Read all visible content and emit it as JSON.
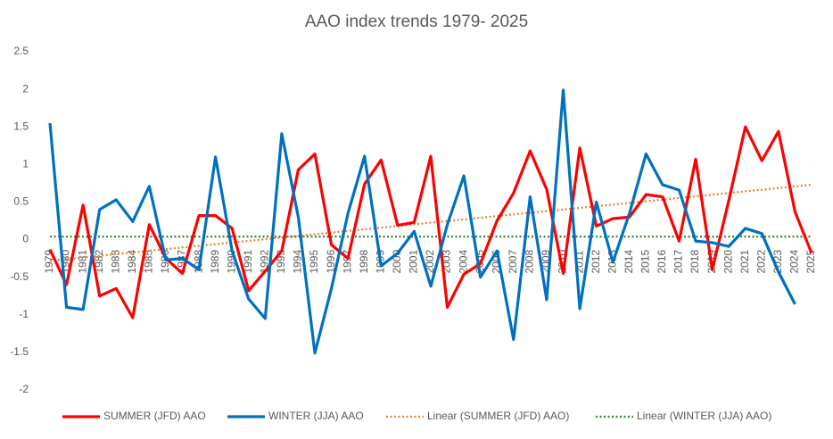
{
  "chart_data": {
    "type": "line",
    "title": "AAO index trends 1979- 2025",
    "categories": [
      "1979",
      "1980",
      "1981",
      "1982",
      "1983",
      "1984",
      "1985",
      "1986",
      "1987",
      "1988",
      "1989",
      "1990",
      "1991",
      "1992",
      "1993",
      "1994",
      "1995",
      "1996",
      "1997",
      "1998",
      "1999",
      "2000",
      "2001",
      "2002",
      "2003",
      "2004",
      "2005",
      "2006",
      "2007",
      "2008",
      "2009",
      "2010",
      "2011",
      "2012",
      "2013",
      "2014",
      "2015",
      "2016",
      "2017",
      "2018",
      "2019",
      "2020",
      "2021",
      "2022",
      "2023",
      "2024",
      "2025"
    ],
    "series": [
      {
        "name": "SUMMER (JFD) AAO",
        "color": "#ff0000",
        "values": [
          -0.13,
          -0.6,
          0.46,
          -0.75,
          -0.65,
          -1.04,
          0.2,
          -0.25,
          -0.45,
          0.32,
          0.32,
          0.15,
          -0.68,
          -0.42,
          -0.15,
          0.93,
          1.14,
          -0.07,
          -0.25,
          0.74,
          1.06,
          0.19,
          0.23,
          1.11,
          -0.9,
          -0.46,
          -0.32,
          0.25,
          0.62,
          1.18,
          0.67,
          -0.45,
          1.22,
          0.18,
          0.28,
          0.3,
          0.6,
          0.57,
          -0.02,
          1.07,
          -0.4,
          0.52,
          1.5,
          1.05,
          1.44,
          0.37,
          -0.18
        ]
      },
      {
        "name": "WINTER (JJA) AAO",
        "color": "#0070c0",
        "values": [
          1.55,
          -0.9,
          -0.93,
          0.4,
          0.53,
          0.24,
          0.71,
          -0.27,
          -0.25,
          -0.4,
          1.1,
          -0.15,
          -0.79,
          -1.05,
          1.41,
          0.3,
          -1.51,
          -0.65,
          0.35,
          1.11,
          -0.35,
          -0.18,
          0.11,
          -0.62,
          0.2,
          0.85,
          -0.5,
          -0.15,
          -1.33,
          0.57,
          -0.8,
          1.99,
          -0.92,
          0.5,
          -0.3,
          0.35,
          1.14,
          0.73,
          0.66,
          -0.02,
          -0.04,
          -0.09,
          0.15,
          0.08,
          -0.43,
          -0.86,
          null
        ]
      }
    ],
    "trendlines": [
      {
        "name": "Linear (SUMMER (JFD) AAO)",
        "color": "#ed7d31",
        "values": [
          -0.28,
          0.73
        ]
      },
      {
        "name": "Linear (WINTER (JJA) AAO)",
        "color": "#2e7d32",
        "values": [
          0.04,
          0.04
        ]
      }
    ],
    "ylim": [
      -2,
      2.5
    ],
    "yticks": [
      2.5,
      2,
      1.5,
      1,
      0.5,
      0,
      -0.5,
      -1,
      -1.5,
      -2
    ],
    "legend": "bottom"
  }
}
